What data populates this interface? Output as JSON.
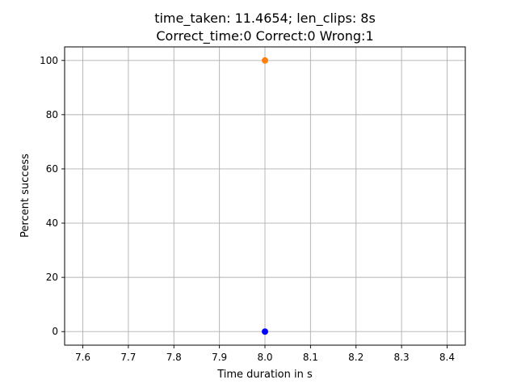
{
  "chart_data": {
    "type": "scatter",
    "title_line1": "time_taken: 11.4654; len_clips: 8s",
    "title_line2": "Correct_time:0 Correct:0 Wrong:1",
    "xlabel": "Time duration in s",
    "ylabel": "Percent success",
    "xlim": [
      7.56,
      8.44
    ],
    "ylim": [
      -5,
      105
    ],
    "grid": true,
    "x_ticks": [
      7.6,
      7.7,
      7.8,
      7.9,
      8.0,
      8.1,
      8.2,
      8.3,
      8.4
    ],
    "x_tick_labels": [
      "7.6",
      "7.7",
      "7.8",
      "7.9",
      "8.0",
      "8.1",
      "8.2",
      "8.3",
      "8.4"
    ],
    "y_ticks": [
      0,
      20,
      40,
      60,
      80,
      100
    ],
    "y_tick_labels": [
      "0",
      "20",
      "40",
      "60",
      "80",
      "100"
    ],
    "series": [
      {
        "x": [
          8.0
        ],
        "y": [
          0
        ],
        "color": "#0000ff"
      },
      {
        "x": [
          8.0
        ],
        "y": [
          100
        ],
        "color": "#ff7f0e"
      }
    ]
  }
}
